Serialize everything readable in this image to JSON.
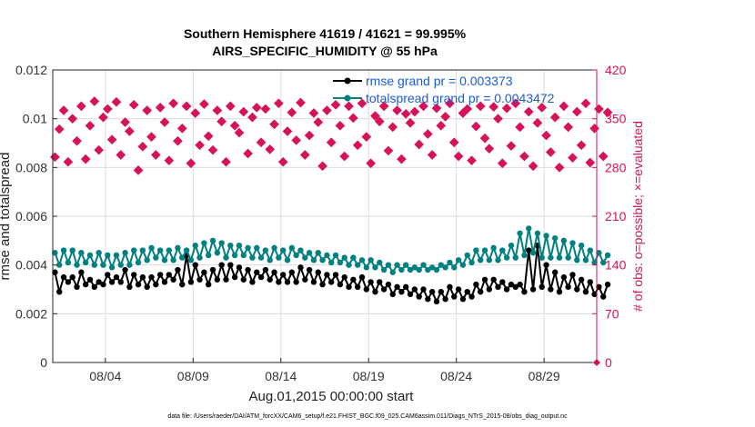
{
  "chart_data": {
    "type": "line",
    "title_line1": "Southern Hemisphere 41619 / 41621 = 99.995%",
    "title_line2": "AIRS_SPECIFIC_HUMIDITY @ 55 hPa",
    "xlabel": "Aug.01,2015 00:00:00 start",
    "ylabel_left": "rmse and totalspread",
    "ylabel_right": "# of obs: o=possible; ×=evaluated",
    "x_ticks": [
      "08/04",
      "08/09",
      "08/14",
      "08/19",
      "08/24",
      "08/29"
    ],
    "x_tick_days": [
      4,
      9,
      14,
      19,
      24,
      29
    ],
    "xlim": [
      1,
      32
    ],
    "y_left_ticks": [
      "0",
      "0.002",
      "0.004",
      "0.006",
      "0.008",
      "0.01",
      "0.012"
    ],
    "y_left_tick_values": [
      0,
      0.002,
      0.004,
      0.006,
      0.008,
      0.01,
      0.012
    ],
    "ylim_left": [
      0,
      0.012
    ],
    "y_right_ticks": [
      "0",
      "70",
      "140",
      "210",
      "280",
      "350",
      "420"
    ],
    "y_right_tick_values": [
      0,
      70,
      140,
      210,
      280,
      350,
      420
    ],
    "ylim_right": [
      0,
      420
    ],
    "grid": true,
    "legend_position": "top-right",
    "colors": {
      "rmse": "#000000",
      "spread": "#008080",
      "obs": "#d6135a"
    },
    "series": [
      {
        "name": "rmse grand pr = 0.003373",
        "x_start": 1.125,
        "x_step": 0.25,
        "values": [
          0.0037,
          0.0029,
          0.0035,
          0.0033,
          0.0035,
          0.0031,
          0.0037,
          0.0032,
          0.0034,
          0.0031,
          0.0033,
          0.0032,
          0.0036,
          0.0033,
          0.0035,
          0.0033,
          0.0038,
          0.0031,
          0.0036,
          0.0032,
          0.0035,
          0.0031,
          0.0035,
          0.0032,
          0.0036,
          0.0033,
          0.0036,
          0.0034,
          0.0038,
          0.0032,
          0.0044,
          0.0033,
          0.004,
          0.0034,
          0.0037,
          0.0032,
          0.0038,
          0.0034,
          0.004,
          0.0034,
          0.004,
          0.0035,
          0.0039,
          0.0034,
          0.0038,
          0.0033,
          0.0037,
          0.0035,
          0.0038,
          0.0034,
          0.0037,
          0.0033,
          0.0036,
          0.0033,
          0.0037,
          0.0033,
          0.0039,
          0.0034,
          0.0038,
          0.0033,
          0.0037,
          0.0032,
          0.0036,
          0.0033,
          0.0036,
          0.0032,
          0.0035,
          0.0031,
          0.0034,
          0.0031,
          0.0035,
          0.003,
          0.0033,
          0.0029,
          0.0033,
          0.003,
          0.0032,
          0.0028,
          0.0031,
          0.0029,
          0.0031,
          0.0028,
          0.003,
          0.0027,
          0.003,
          0.0026,
          0.0029,
          0.0025,
          0.0029,
          0.0026,
          0.0031,
          0.0027,
          0.003,
          0.0026,
          0.0029,
          0.0027,
          0.0032,
          0.0029,
          0.0034,
          0.003,
          0.0034,
          0.0031,
          0.0033,
          0.003,
          0.0032,
          0.0031,
          0.0032,
          0.0029,
          0.0046,
          0.003,
          0.0048,
          0.0031,
          0.004,
          0.003,
          0.0037,
          0.0029,
          0.0035,
          0.0031,
          0.0036,
          0.003,
          0.0034,
          0.0029,
          0.0033,
          0.0028,
          0.0031,
          0.0027,
          0.0032
        ],
        "marker": "dot"
      },
      {
        "name": "totalspread grand pr = 0.0043472",
        "x_start": 1.125,
        "x_step": 0.25,
        "values": [
          0.0045,
          0.004,
          0.0046,
          0.0041,
          0.0046,
          0.004,
          0.0045,
          0.0041,
          0.0044,
          0.004,
          0.0045,
          0.004,
          0.0044,
          0.0039,
          0.0044,
          0.004,
          0.0045,
          0.004,
          0.0046,
          0.0041,
          0.0046,
          0.0042,
          0.0047,
          0.0043,
          0.0046,
          0.0042,
          0.0046,
          0.0042,
          0.0047,
          0.0043,
          0.0046,
          0.0042,
          0.0048,
          0.0043,
          0.0049,
          0.0044,
          0.005,
          0.0045,
          0.0049,
          0.0043,
          0.0048,
          0.0044,
          0.0048,
          0.0044,
          0.0047,
          0.0043,
          0.0047,
          0.0043,
          0.0046,
          0.0042,
          0.0047,
          0.0043,
          0.0046,
          0.0042,
          0.0047,
          0.0044,
          0.0046,
          0.0043,
          0.0045,
          0.0042,
          0.0045,
          0.0042,
          0.0044,
          0.0041,
          0.0044,
          0.0041,
          0.0043,
          0.004,
          0.0043,
          0.004,
          0.0042,
          0.0039,
          0.0042,
          0.0039,
          0.0041,
          0.0038,
          0.004,
          0.0037,
          0.004,
          0.0038,
          0.004,
          0.0038,
          0.0039,
          0.0038,
          0.004,
          0.0038,
          0.0039,
          0.0038,
          0.004,
          0.0039,
          0.0041,
          0.0039,
          0.0042,
          0.004,
          0.0044,
          0.0041,
          0.0046,
          0.0042,
          0.0046,
          0.0042,
          0.0047,
          0.0042,
          0.0046,
          0.0043,
          0.0048,
          0.0043,
          0.0053,
          0.0044,
          0.0055,
          0.0045,
          0.0053,
          0.0043,
          0.0052,
          0.0043,
          0.0051,
          0.0043,
          0.005,
          0.0043,
          0.0049,
          0.0042,
          0.0048,
          0.0042,
          0.0046,
          0.0041,
          0.0045,
          0.0041,
          0.0044
        ],
        "marker": "dot"
      },
      {
        "name": "# of obs possible / evaluated",
        "axis": "right",
        "x_start": 1.125,
        "x_step": 0.25,
        "values": [
          295,
          335,
          362,
          288,
          350,
          318,
          368,
          292,
          340,
          375,
          305,
          352,
          364,
          320,
          374,
          298,
          345,
          332,
          370,
          276,
          310,
          362,
          324,
          298,
          366,
          345,
          290,
          372,
          318,
          336,
          368,
          286,
          358,
          312,
          371,
          325,
          305,
          362,
          346,
          288,
          368,
          340,
          330,
          360,
          300,
          352,
          366,
          316,
          364,
          306,
          342,
          372,
          288,
          332,
          359,
          319,
          373,
          298,
          326,
          358,
          345,
          282,
          362,
          316,
          370,
          340,
          296,
          368,
          351,
          312,
          372,
          324,
          286,
          354,
          346,
          368,
          304,
          338,
          362,
          292,
          357,
          344,
          360,
          313,
          368,
          328,
          298,
          365,
          340,
          353,
          372,
          316,
          296,
          358,
          364,
          290,
          339,
          368,
          322,
          307,
          367,
          350,
          286,
          365,
          311,
          372,
          338,
          296,
          360,
          282,
          344,
          366,
          326,
          302,
          352,
          280,
          368,
          338,
          294,
          360,
          312,
          372,
          287,
          336,
          364,
          296,
          359
        ]
      }
    ],
    "footer": "data file: /Users/raeder/DAI/ATM_forcXX/CAM6_setup/f.e21.FHIST_BGC.f09_025.CAM6assim.011/Diags_NTrS_2015-08/obs_diag_output.nc"
  }
}
